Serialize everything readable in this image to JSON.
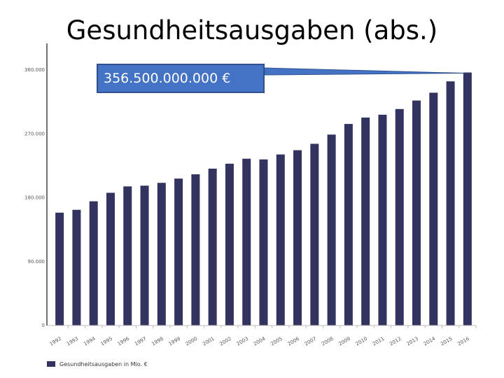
{
  "slide": {
    "title": "Gesundheitsausgaben (abs.)",
    "callout": "356.500.000.000 €"
  },
  "colors": {
    "bar": "#33335f",
    "callout_fill": "#4472c4"
  },
  "chart_data": {
    "type": "bar",
    "title": "",
    "xlabel": "",
    "ylabel": "",
    "ylim": [
      0,
      360000
    ],
    "yticks": [
      0,
      90000,
      180000,
      270000,
      360000
    ],
    "ytick_labels": [
      "0",
      "90.000",
      "180.000",
      "270.000",
      "360.000"
    ],
    "grid": false,
    "legend_position": "bottom-left",
    "categories": [
      "1992",
      "1993",
      "1994",
      "1995",
      "1996",
      "1997",
      "1998",
      "1999",
      "2000",
      "2001",
      "2002",
      "2003",
      "2004",
      "2005",
      "2006",
      "2007",
      "2008",
      "2009",
      "2010",
      "2011",
      "2012",
      "2013",
      "2014",
      "2015",
      "2016"
    ],
    "series": [
      {
        "name": "Gesundheitsausgaben in Mio. €",
        "values": [
          159000,
          163000,
          175000,
          187000,
          196000,
          197000,
          201000,
          207000,
          213000,
          221000,
          228000,
          235000,
          234000,
          241000,
          247000,
          256000,
          269000,
          284000,
          293000,
          297000,
          305000,
          317000,
          328000,
          344000,
          356500
        ]
      }
    ]
  }
}
